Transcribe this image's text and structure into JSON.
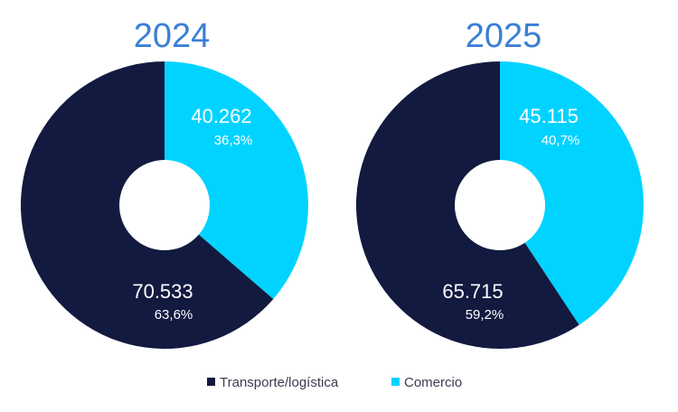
{
  "chart_data": [
    {
      "type": "pie",
      "title": "2024",
      "categories": [
        "Transporte/logística",
        "Comercio"
      ],
      "values": [
        70533,
        40262
      ],
      "value_labels": [
        "70.533",
        "40.262"
      ],
      "percent_labels": [
        "63,6%",
        "36,3%"
      ]
    },
    {
      "type": "pie",
      "title": "2025",
      "categories": [
        "Transporte/logística",
        "Comercio"
      ],
      "values": [
        65715,
        45115
      ],
      "value_labels": [
        "65.715",
        "45.115"
      ],
      "percent_labels": [
        "59,2%",
        "40,7%"
      ]
    }
  ],
  "legend": {
    "placement": "bottom",
    "items": [
      {
        "label": "Transporte/logística",
        "color": "#121a40"
      },
      {
        "label": "Comercio",
        "color": "#00d3ff"
      }
    ]
  }
}
